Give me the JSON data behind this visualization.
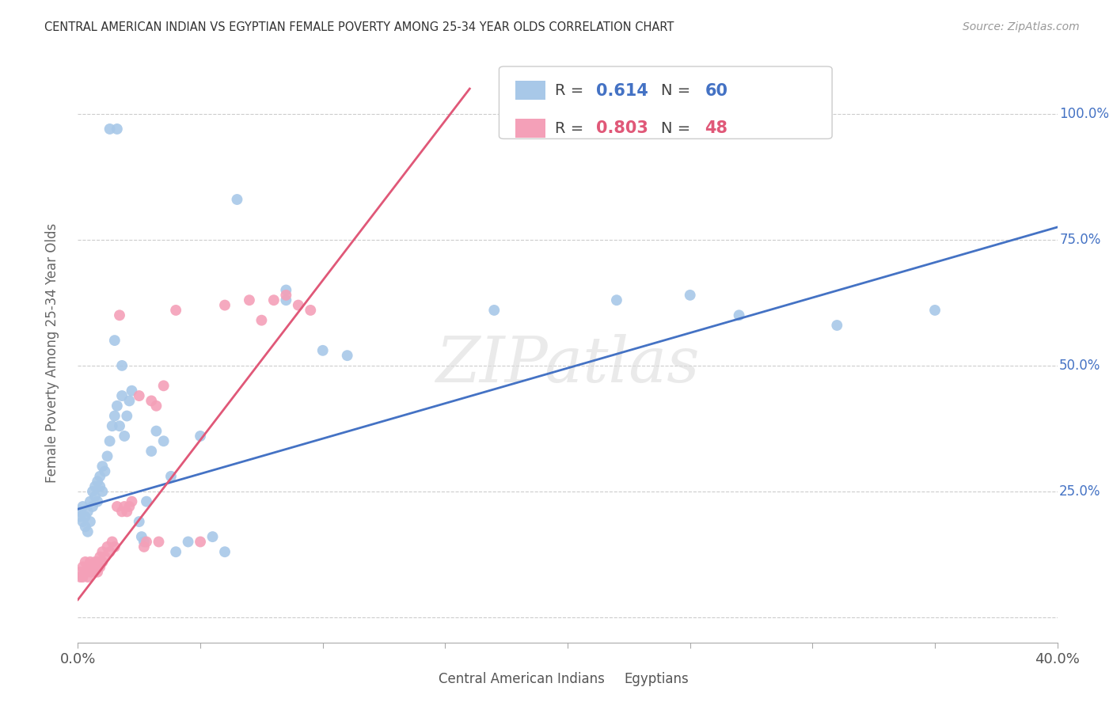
{
  "title": "CENTRAL AMERICAN INDIAN VS EGYPTIAN FEMALE POVERTY AMONG 25-34 YEAR OLDS CORRELATION CHART",
  "source": "Source: ZipAtlas.com",
  "ylabel": "Female Poverty Among 25-34 Year Olds",
  "xlim": [
    0.0,
    0.4
  ],
  "ylim": [
    -0.05,
    1.1
  ],
  "y_ticks": [
    0.0,
    0.25,
    0.5,
    0.75,
    1.0
  ],
  "y_tick_labels": [
    "",
    "25.0%",
    "50.0%",
    "75.0%",
    "100.0%"
  ],
  "color_blue": "#A8C8E8",
  "color_pink": "#F4A0B8",
  "line_blue": "#4472C4",
  "line_pink": "#E05878",
  "watermark": "ZIPatlas",
  "legend_R_blue": "0.614",
  "legend_N_blue": "60",
  "legend_R_pink": "0.803",
  "legend_N_pink": "48",
  "blue_points": [
    [
      0.001,
      0.2
    ],
    [
      0.001,
      0.21
    ],
    [
      0.002,
      0.19
    ],
    [
      0.002,
      0.22
    ],
    [
      0.003,
      0.18
    ],
    [
      0.003,
      0.2
    ],
    [
      0.004,
      0.21
    ],
    [
      0.004,
      0.17
    ],
    [
      0.005,
      0.19
    ],
    [
      0.005,
      0.23
    ],
    [
      0.006,
      0.22
    ],
    [
      0.006,
      0.25
    ],
    [
      0.007,
      0.24
    ],
    [
      0.007,
      0.26
    ],
    [
      0.008,
      0.23
    ],
    [
      0.008,
      0.27
    ],
    [
      0.009,
      0.26
    ],
    [
      0.009,
      0.28
    ],
    [
      0.01,
      0.25
    ],
    [
      0.01,
      0.3
    ],
    [
      0.011,
      0.29
    ],
    [
      0.012,
      0.32
    ],
    [
      0.013,
      0.35
    ],
    [
      0.014,
      0.38
    ],
    [
      0.015,
      0.4
    ],
    [
      0.016,
      0.42
    ],
    [
      0.017,
      0.38
    ],
    [
      0.018,
      0.44
    ],
    [
      0.019,
      0.36
    ],
    [
      0.02,
      0.4
    ],
    [
      0.021,
      0.43
    ],
    [
      0.022,
      0.45
    ],
    [
      0.015,
      0.55
    ],
    [
      0.018,
      0.5
    ],
    [
      0.025,
      0.19
    ],
    [
      0.026,
      0.16
    ],
    [
      0.027,
      0.15
    ],
    [
      0.028,
      0.23
    ],
    [
      0.03,
      0.33
    ],
    [
      0.032,
      0.37
    ],
    [
      0.035,
      0.35
    ],
    [
      0.038,
      0.28
    ],
    [
      0.04,
      0.13
    ],
    [
      0.045,
      0.15
    ],
    [
      0.05,
      0.36
    ],
    [
      0.055,
      0.16
    ],
    [
      0.06,
      0.13
    ],
    [
      0.013,
      0.97
    ],
    [
      0.016,
      0.97
    ],
    [
      0.065,
      0.83
    ],
    [
      0.085,
      0.63
    ],
    [
      0.085,
      0.65
    ],
    [
      0.1,
      0.53
    ],
    [
      0.11,
      0.52
    ],
    [
      0.17,
      0.61
    ],
    [
      0.22,
      0.63
    ],
    [
      0.25,
      0.64
    ],
    [
      0.27,
      0.6
    ],
    [
      0.31,
      0.58
    ],
    [
      0.35,
      0.61
    ]
  ],
  "pink_points": [
    [
      0.001,
      0.08
    ],
    [
      0.001,
      0.09
    ],
    [
      0.002,
      0.08
    ],
    [
      0.002,
      0.1
    ],
    [
      0.003,
      0.09
    ],
    [
      0.003,
      0.11
    ],
    [
      0.004,
      0.08
    ],
    [
      0.004,
      0.1
    ],
    [
      0.005,
      0.09
    ],
    [
      0.005,
      0.11
    ],
    [
      0.006,
      0.1
    ],
    [
      0.006,
      0.09
    ],
    [
      0.007,
      0.1
    ],
    [
      0.007,
      0.11
    ],
    [
      0.008,
      0.09
    ],
    [
      0.008,
      0.11
    ],
    [
      0.009,
      0.1
    ],
    [
      0.009,
      0.12
    ],
    [
      0.01,
      0.11
    ],
    [
      0.01,
      0.13
    ],
    [
      0.011,
      0.12
    ],
    [
      0.012,
      0.14
    ],
    [
      0.013,
      0.13
    ],
    [
      0.014,
      0.15
    ],
    [
      0.015,
      0.14
    ],
    [
      0.016,
      0.22
    ],
    [
      0.017,
      0.6
    ],
    [
      0.018,
      0.21
    ],
    [
      0.019,
      0.22
    ],
    [
      0.02,
      0.21
    ],
    [
      0.021,
      0.22
    ],
    [
      0.022,
      0.23
    ],
    [
      0.025,
      0.44
    ],
    [
      0.027,
      0.14
    ],
    [
      0.028,
      0.15
    ],
    [
      0.03,
      0.43
    ],
    [
      0.032,
      0.42
    ],
    [
      0.033,
      0.15
    ],
    [
      0.035,
      0.46
    ],
    [
      0.04,
      0.61
    ],
    [
      0.05,
      0.15
    ],
    [
      0.06,
      0.62
    ],
    [
      0.07,
      0.63
    ],
    [
      0.075,
      0.59
    ],
    [
      0.08,
      0.63
    ],
    [
      0.085,
      0.64
    ],
    [
      0.09,
      0.62
    ],
    [
      0.095,
      0.61
    ]
  ],
  "blue_line_x": [
    0.0,
    0.4
  ],
  "blue_line_y": [
    0.215,
    0.775
  ],
  "pink_line_x": [
    0.0,
    0.16
  ],
  "pink_line_y": [
    0.035,
    1.05
  ],
  "grid_color": "#CCCCCC",
  "bg_color": "#FFFFFF"
}
